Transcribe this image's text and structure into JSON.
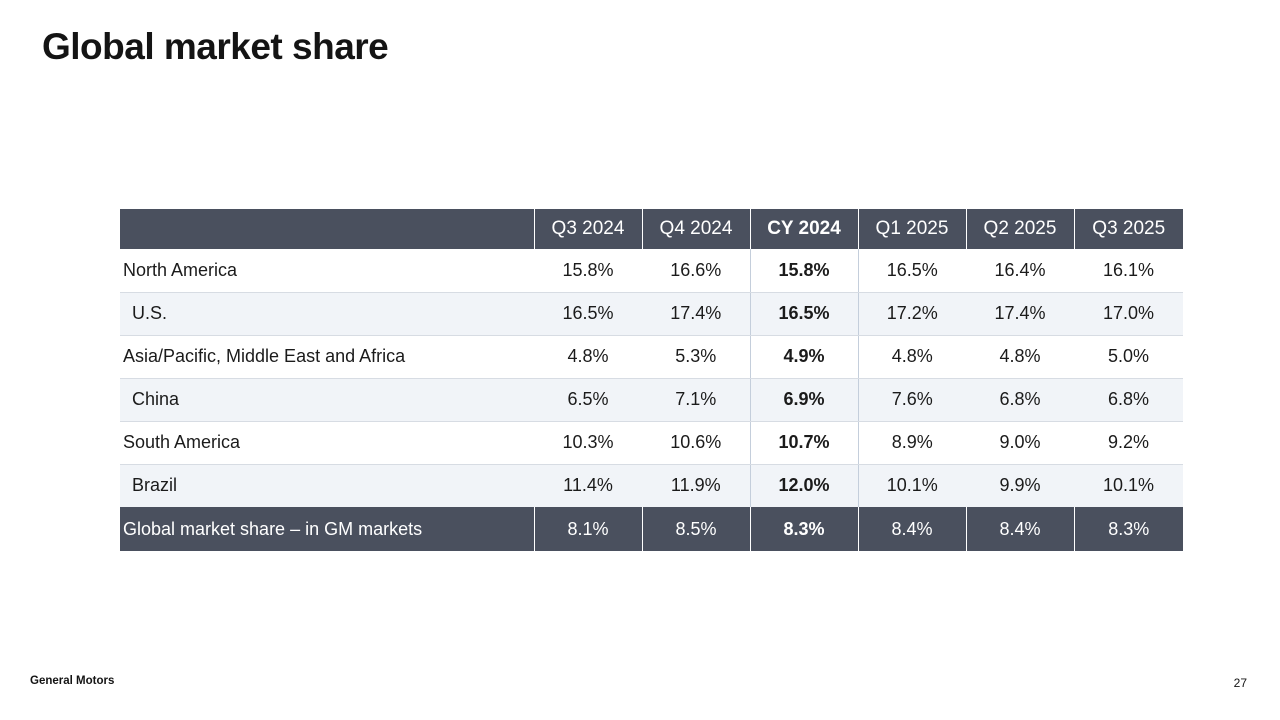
{
  "slide": {
    "title": "Global market share",
    "footer": {
      "brand": "General Motors",
      "page_number": "27"
    }
  },
  "table": {
    "columns": [
      "",
      "Q3 2024",
      "Q4 2024",
      "CY 2024",
      "Q1 2025",
      "Q2 2025",
      "Q3 2025"
    ],
    "highlight_column": "CY 2024",
    "rows": [
      {
        "label": "North America",
        "indent": false,
        "values": [
          "15.8%",
          "16.6%",
          "15.8%",
          "16.5%",
          "16.4%",
          "16.1%"
        ]
      },
      {
        "label": "U.S.",
        "indent": true,
        "values": [
          "16.5%",
          "17.4%",
          "16.5%",
          "17.2%",
          "17.4%",
          "17.0%"
        ]
      },
      {
        "label": "Asia/Pacific, Middle East and Africa",
        "indent": false,
        "values": [
          "4.8%",
          "5.3%",
          "4.9%",
          "4.8%",
          "4.8%",
          "5.0%"
        ]
      },
      {
        "label": "China",
        "indent": true,
        "values": [
          "6.5%",
          "7.1%",
          "6.9%",
          "7.6%",
          "6.8%",
          "6.8%"
        ]
      },
      {
        "label": "South America",
        "indent": false,
        "values": [
          "10.3%",
          "10.6%",
          "10.7%",
          "8.9%",
          "9.0%",
          "9.2%"
        ]
      },
      {
        "label": "Brazil",
        "indent": true,
        "values": [
          "11.4%",
          "11.9%",
          "12.0%",
          "10.1%",
          "9.9%",
          "10.1%"
        ]
      }
    ],
    "total_row": {
      "label": "Global market share – in GM markets",
      "values": [
        "8.1%",
        "8.5%",
        "8.3%",
        "8.4%",
        "8.4%",
        "8.3%"
      ]
    }
  },
  "colors": {
    "header_bg": "#4a505e",
    "alt_row_bg": "#f1f4f8",
    "row_divider": "#d7dce3",
    "cy_column_border": "#c4cedb",
    "text": "#1b1b1b"
  },
  "chart_data": {
    "type": "table",
    "title": "Global market share",
    "categories": [
      "Q3 2024",
      "Q4 2024",
      "CY 2024",
      "Q1 2025",
      "Q2 2025",
      "Q3 2025"
    ],
    "series": [
      {
        "name": "North America",
        "values": [
          15.8,
          16.6,
          15.8,
          16.5,
          16.4,
          16.1
        ]
      },
      {
        "name": "U.S.",
        "values": [
          16.5,
          17.4,
          16.5,
          17.2,
          17.4,
          17.0
        ]
      },
      {
        "name": "Asia/Pacific, Middle East and Africa",
        "values": [
          4.8,
          5.3,
          4.9,
          4.8,
          4.8,
          5.0
        ]
      },
      {
        "name": "China",
        "values": [
          6.5,
          7.1,
          6.9,
          7.6,
          6.8,
          6.8
        ]
      },
      {
        "name": "South America",
        "values": [
          10.3,
          10.6,
          10.7,
          8.9,
          9.0,
          9.2
        ]
      },
      {
        "name": "Brazil",
        "values": [
          11.4,
          11.9,
          12.0,
          10.1,
          9.9,
          10.1
        ]
      },
      {
        "name": "Global market share – in GM markets",
        "values": [
          8.1,
          8.5,
          8.3,
          8.4,
          8.4,
          8.3
        ]
      }
    ],
    "unit": "%"
  }
}
